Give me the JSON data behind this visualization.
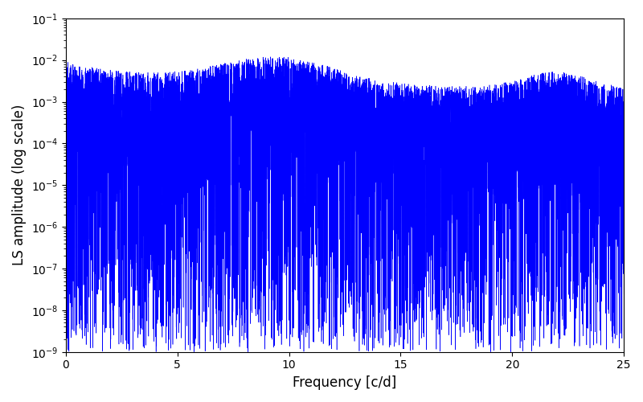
{
  "title": "",
  "xlabel": "Frequency [c/d]",
  "ylabel": "LS amplitude (log scale)",
  "xlim": [
    0,
    25
  ],
  "ylim": [
    1e-09,
    0.1
  ],
  "line_color": "#0000ff",
  "line_width": 0.4,
  "background_color": "#ffffff",
  "figsize": [
    8.0,
    5.0
  ],
  "dpi": 100,
  "seed": 77,
  "n_points": 10000,
  "freq_max": 25.0
}
